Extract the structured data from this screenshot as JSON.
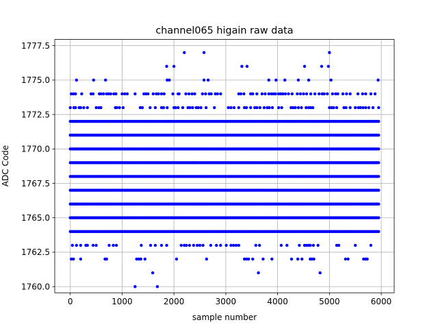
{
  "chart_data": {
    "type": "scatter",
    "title": "channel065 higain raw data",
    "xlabel": "sample number",
    "ylabel": "ADC Code",
    "xlim": [
      -300,
      6250
    ],
    "ylim": [
      1759.55,
      1777.95
    ],
    "xticks": [
      0,
      1000,
      2000,
      3000,
      4000,
      5000,
      6000
    ],
    "xtick_labels": [
      "0",
      "1000",
      "2000",
      "3000",
      "4000",
      "5000",
      "6000"
    ],
    "yticks": [
      1760.0,
      1762.5,
      1765.0,
      1767.5,
      1770.0,
      1772.5,
      1775.0,
      1777.5
    ],
    "ytick_labels": [
      "1760.0",
      "1762.5",
      "1765.0",
      "1767.5",
      "1770.0",
      "1772.5",
      "1775.0",
      "1777.5"
    ],
    "grid": true,
    "marker_color": "#0000ff",
    "series": [
      {
        "x_range": [
          0,
          5950
        ],
        "dense_levels": [
          1764,
          1765,
          1766,
          1767,
          1768,
          1769,
          1770,
          1771,
          1772
        ],
        "sparse_points": {
          "1760": [
            1250,
            1680
          ],
          "1761": [
            1590,
            3630,
            4820
          ],
          "1762": [
            20,
            60,
            200,
            670,
            700,
            1280,
            1320,
            1360,
            1440,
            2050,
            2630,
            3360,
            3400,
            3440,
            3520,
            3720,
            3890,
            4270,
            4390,
            4470,
            4630,
            4660,
            4700,
            5310,
            5360,
            5660,
            5700,
            5730
          ],
          "1763": [
            40,
            120,
            200,
            300,
            330,
            440,
            500,
            750,
            830,
            890,
            1370,
            1550,
            1640,
            1760,
            1860,
            2140,
            2200,
            2240,
            2300,
            2380,
            2450,
            2500,
            2560,
            2710,
            2820,
            2900,
            3010,
            3100,
            3150,
            3200,
            3250,
            3580,
            3650,
            4070,
            4180,
            4420,
            4520,
            4560,
            4600,
            4630,
            4690,
            4780,
            5140,
            5180,
            5500,
            5800
          ],
          "1773": [
            0,
            70,
            100,
            170,
            200,
            260,
            330,
            500,
            550,
            590,
            870,
            900,
            950,
            1020,
            1350,
            1390,
            1540,
            1640,
            1760,
            1800,
            1870,
            2000,
            2030,
            2080,
            2170,
            2270,
            2310,
            2360,
            2430,
            2470,
            2520,
            2620,
            2780,
            3050,
            3100,
            3160,
            3250,
            3360,
            3400,
            3480,
            3560,
            3600,
            3660,
            3740,
            3800,
            3840,
            3900,
            4020,
            4080,
            4260,
            4300,
            4340,
            4400,
            4460,
            4550,
            4600,
            4640,
            4680,
            5000,
            5040,
            5080,
            5140,
            5280,
            5320,
            5400,
            5500,
            5560,
            5600,
            5650,
            5700,
            5760,
            5840,
            5950
          ],
          "1774": [
            20,
            60,
            100,
            220,
            400,
            440,
            560,
            590,
            640,
            700,
            740,
            780,
            840,
            880,
            1000,
            1050,
            1100,
            1250,
            1420,
            1460,
            1500,
            1600,
            1660,
            1700,
            1760,
            1810,
            1980,
            2080,
            2100,
            2230,
            2290,
            2350,
            2400,
            2550,
            2610,
            2680,
            2720,
            2800,
            2840,
            2900,
            3250,
            3290,
            3350,
            3480,
            3520,
            3600,
            3700,
            3760,
            3830,
            3880,
            3920,
            3960,
            4020,
            4060,
            4100,
            4150,
            4210,
            4280,
            4380,
            4440,
            4500,
            4560,
            4640,
            4720,
            4800,
            4860,
            4900,
            4960,
            5060,
            5120,
            5160,
            5260,
            5330,
            5400,
            5550,
            5640,
            5700,
            5800,
            5880
          ],
          "1775": [
            120,
            450,
            680,
            1870,
            1910,
            2580,
            2660,
            3830,
            3970,
            4140,
            4400,
            4600,
            5030,
            5940
          ],
          "1776": [
            1860,
            2000,
            3310,
            3410,
            4520,
            4850,
            4980
          ],
          "1777": [
            2200,
            2580,
            5000
          ]
        }
      }
    ]
  }
}
